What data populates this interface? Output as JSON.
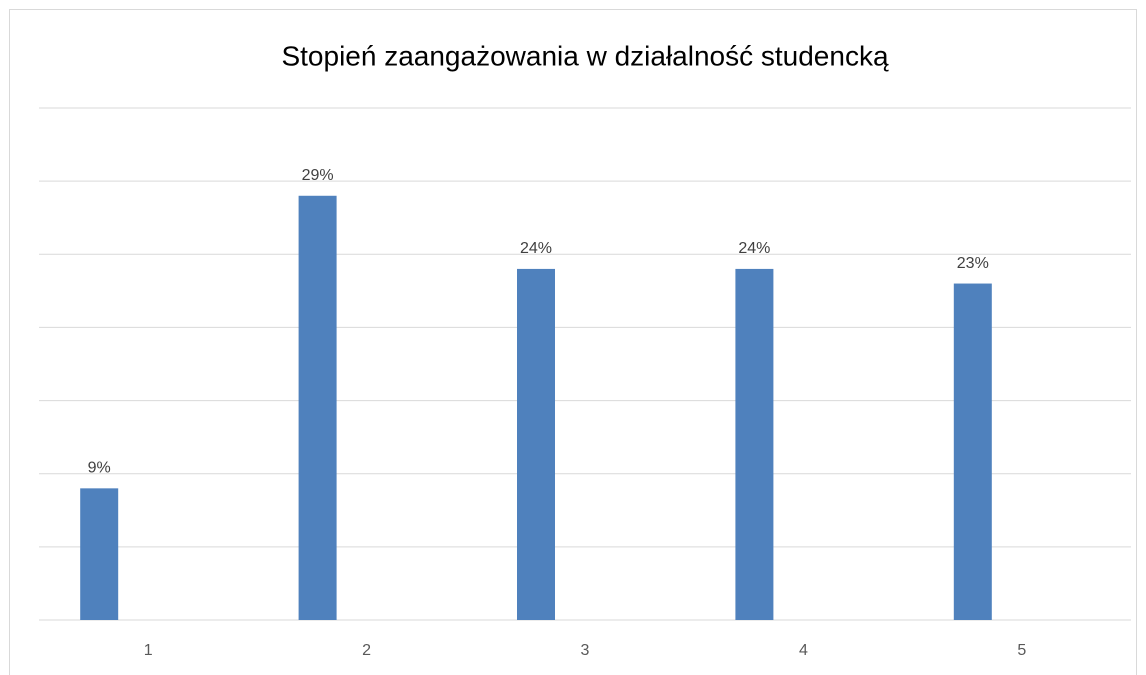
{
  "chart_data": {
    "type": "bar",
    "title": "Stopień zaangażowania w działalność studencką",
    "categories": [
      "1",
      "2",
      "3",
      "4",
      "5"
    ],
    "values": [
      9,
      29,
      24,
      24,
      23
    ],
    "value_labels": [
      "9%",
      "29%",
      "24%",
      "24%",
      "23%"
    ],
    "color": "#4f81bd",
    "ylim": [
      0,
      35
    ],
    "yticks": [
      0,
      5,
      10,
      15,
      20,
      25,
      30,
      35
    ],
    "grid": true
  }
}
